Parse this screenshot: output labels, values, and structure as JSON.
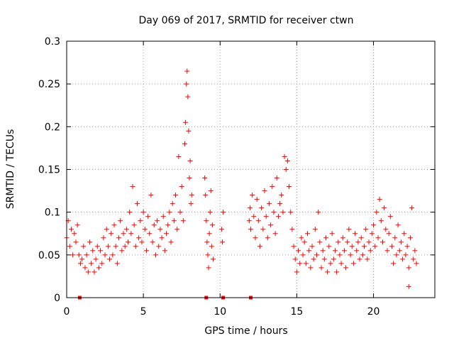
{
  "chart_data": {
    "type": "scatter",
    "title": "Day 069 of 2017, SRMTID for receiver ctwn",
    "xlabel": "GPS time / hours",
    "ylabel": "SRMTID / TECUs",
    "xlim": [
      0,
      24
    ],
    "ylim": [
      0,
      0.3
    ],
    "xticks": [
      0,
      5,
      10,
      15,
      20
    ],
    "xtick_labels": [
      "0",
      "5",
      "10",
      "15",
      "20"
    ],
    "yticks": [
      0,
      0.05,
      0.1,
      0.15,
      0.2,
      0.25,
      0.3
    ],
    "ytick_labels": [
      "0",
      "0.05",
      "0.1",
      "0.15",
      "0.2",
      "0.25",
      "0.3"
    ],
    "grid": true,
    "marker": "+",
    "series_color": "#ff0000",
    "series": [
      {
        "name": "SRMTID",
        "points": [
          [
            0.0,
            0.07
          ],
          [
            0.1,
            0.09
          ],
          [
            0.2,
            0.06
          ],
          [
            0.3,
            0.08
          ],
          [
            0.4,
            0.05
          ],
          [
            0.5,
            0.075
          ],
          [
            0.6,
            0.065
          ],
          [
            0.7,
            0.085
          ],
          [
            0.8,
            0.05
          ],
          [
            0.9,
            0.04
          ],
          [
            1.0,
            0.045
          ],
          [
            1.1,
            0.06
          ],
          [
            1.2,
            0.035
          ],
          [
            1.3,
            0.05
          ],
          [
            1.4,
            0.03
          ],
          [
            1.5,
            0.065
          ],
          [
            1.6,
            0.04
          ],
          [
            1.7,
            0.055
          ],
          [
            1.8,
            0.03
          ],
          [
            1.9,
            0.045
          ],
          [
            2.0,
            0.06
          ],
          [
            2.1,
            0.035
          ],
          [
            2.2,
            0.055
          ],
          [
            2.3,
            0.04
          ],
          [
            2.4,
            0.07
          ],
          [
            2.5,
            0.05
          ],
          [
            2.6,
            0.08
          ],
          [
            2.7,
            0.06
          ],
          [
            2.8,
            0.045
          ],
          [
            2.9,
            0.075
          ],
          [
            3.0,
            0.05
          ],
          [
            3.1,
            0.085
          ],
          [
            3.2,
            0.06
          ],
          [
            3.3,
            0.04
          ],
          [
            3.4,
            0.07
          ],
          [
            3.5,
            0.09
          ],
          [
            3.6,
            0.055
          ],
          [
            3.7,
            0.075
          ],
          [
            3.8,
            0.06
          ],
          [
            3.9,
            0.08
          ],
          [
            4.0,
            0.065
          ],
          [
            4.1,
            0.1
          ],
          [
            4.2,
            0.075
          ],
          [
            4.3,
            0.13
          ],
          [
            4.4,
            0.085
          ],
          [
            4.5,
            0.06
          ],
          [
            4.6,
            0.11
          ],
          [
            4.7,
            0.07
          ],
          [
            4.8,
            0.09
          ],
          [
            4.9,
            0.065
          ],
          [
            5.0,
            0.1
          ],
          [
            5.1,
            0.08
          ],
          [
            5.2,
            0.055
          ],
          [
            5.3,
            0.095
          ],
          [
            5.4,
            0.075
          ],
          [
            5.5,
            0.12
          ],
          [
            5.6,
            0.065
          ],
          [
            5.7,
            0.085
          ],
          [
            5.8,
            0.05
          ],
          [
            5.9,
            0.09
          ],
          [
            6.0,
            0.06
          ],
          [
            6.1,
            0.08
          ],
          [
            6.2,
            0.07
          ],
          [
            6.3,
            0.095
          ],
          [
            6.4,
            0.055
          ],
          [
            6.5,
            0.075
          ],
          [
            6.6,
            0.085
          ],
          [
            6.7,
            0.1
          ],
          [
            6.8,
            0.065
          ],
          [
            6.9,
            0.11
          ],
          [
            7.0,
            0.09
          ],
          [
            7.1,
            0.12
          ],
          [
            7.2,
            0.08
          ],
          [
            7.3,
            0.165
          ],
          [
            7.4,
            0.1
          ],
          [
            7.5,
            0.13
          ],
          [
            7.6,
            0.09
          ],
          [
            7.7,
            0.18
          ],
          [
            7.75,
            0.205
          ],
          [
            7.8,
            0.25
          ],
          [
            7.85,
            0.265
          ],
          [
            7.9,
            0.235
          ],
          [
            7.95,
            0.195
          ],
          [
            8.0,
            0.14
          ],
          [
            8.05,
            0.16
          ],
          [
            8.1,
            0.11
          ],
          [
            8.15,
            0.12
          ],
          [
            9.0,
            0.14
          ],
          [
            9.05,
            0.12
          ],
          [
            9.1,
            0.09
          ],
          [
            9.15,
            0.065
          ],
          [
            9.2,
            0.05
          ],
          [
            9.25,
            0.035
          ],
          [
            9.3,
            0.075
          ],
          [
            9.35,
            0.1
          ],
          [
            9.4,
            0.125
          ],
          [
            9.45,
            0.06
          ],
          [
            9.5,
            0.085
          ],
          [
            9.55,
            0.045
          ],
          [
            10.1,
            0.08
          ],
          [
            10.15,
            0.065
          ],
          [
            10.2,
            0.1
          ],
          [
            11.9,
            0.09
          ],
          [
            11.95,
            0.105
          ],
          [
            12.0,
            0.08
          ],
          [
            12.1,
            0.12
          ],
          [
            12.2,
            0.095
          ],
          [
            12.3,
            0.07
          ],
          [
            12.4,
            0.115
          ],
          [
            12.5,
            0.09
          ],
          [
            12.6,
            0.06
          ],
          [
            12.7,
            0.105
          ],
          [
            12.8,
            0.08
          ],
          [
            12.9,
            0.125
          ],
          [
            13.0,
            0.095
          ],
          [
            13.1,
            0.07
          ],
          [
            13.2,
            0.11
          ],
          [
            13.3,
            0.085
          ],
          [
            13.4,
            0.13
          ],
          [
            13.5,
            0.1
          ],
          [
            13.6,
            0.075
          ],
          [
            13.7,
            0.14
          ],
          [
            13.8,
            0.095
          ],
          [
            13.9,
            0.11
          ],
          [
            14.0,
            0.12
          ],
          [
            14.1,
            0.1
          ],
          [
            14.2,
            0.165
          ],
          [
            14.3,
            0.15
          ],
          [
            14.4,
            0.16
          ],
          [
            14.5,
            0.13
          ],
          [
            14.6,
            0.1
          ],
          [
            14.7,
            0.08
          ],
          [
            14.8,
            0.06
          ],
          [
            14.9,
            0.045
          ],
          [
            15.0,
            0.03
          ],
          [
            15.1,
            0.055
          ],
          [
            15.2,
            0.04
          ],
          [
            15.3,
            0.07
          ],
          [
            15.4,
            0.05
          ],
          [
            15.5,
            0.065
          ],
          [
            15.6,
            0.04
          ],
          [
            15.7,
            0.075
          ],
          [
            15.8,
            0.055
          ],
          [
            15.9,
            0.035
          ],
          [
            16.0,
            0.06
          ],
          [
            16.1,
            0.045
          ],
          [
            16.2,
            0.08
          ],
          [
            16.3,
            0.05
          ],
          [
            16.4,
            0.1
          ],
          [
            16.5,
            0.065
          ],
          [
            16.6,
            0.035
          ],
          [
            16.7,
            0.055
          ],
          [
            16.8,
            0.045
          ],
          [
            16.9,
            0.07
          ],
          [
            17.0,
            0.03
          ],
          [
            17.1,
            0.06
          ],
          [
            17.2,
            0.04
          ],
          [
            17.3,
            0.075
          ],
          [
            17.4,
            0.045
          ],
          [
            17.5,
            0.055
          ],
          [
            17.6,
            0.03
          ],
          [
            17.7,
            0.065
          ],
          [
            17.8,
            0.05
          ],
          [
            17.9,
            0.04
          ],
          [
            18.0,
            0.07
          ],
          [
            18.1,
            0.055
          ],
          [
            18.2,
            0.035
          ],
          [
            18.3,
            0.065
          ],
          [
            18.4,
            0.08
          ],
          [
            18.5,
            0.05
          ],
          [
            18.6,
            0.06
          ],
          [
            18.7,
            0.04
          ],
          [
            18.8,
            0.075
          ],
          [
            18.9,
            0.055
          ],
          [
            19.0,
            0.065
          ],
          [
            19.1,
            0.045
          ],
          [
            19.2,
            0.07
          ],
          [
            19.3,
            0.05
          ],
          [
            19.4,
            0.06
          ],
          [
            19.5,
            0.08
          ],
          [
            19.6,
            0.045
          ],
          [
            19.7,
            0.065
          ],
          [
            19.8,
            0.055
          ],
          [
            19.9,
            0.075
          ],
          [
            20.0,
            0.085
          ],
          [
            20.1,
            0.06
          ],
          [
            20.2,
            0.1
          ],
          [
            20.3,
            0.07
          ],
          [
            20.4,
            0.115
          ],
          [
            20.5,
            0.09
          ],
          [
            20.6,
            0.065
          ],
          [
            20.7,
            0.105
          ],
          [
            20.8,
            0.08
          ],
          [
            20.9,
            0.055
          ],
          [
            21.0,
            0.075
          ],
          [
            21.1,
            0.095
          ],
          [
            21.2,
            0.06
          ],
          [
            21.3,
            0.04
          ],
          [
            21.4,
            0.07
          ],
          [
            21.5,
            0.05
          ],
          [
            21.6,
            0.085
          ],
          [
            21.7,
            0.055
          ],
          [
            21.8,
            0.065
          ],
          [
            21.9,
            0.045
          ],
          [
            22.0,
            0.075
          ],
          [
            22.1,
            0.05
          ],
          [
            22.2,
            0.06
          ],
          [
            22.3,
            0.035
          ],
          [
            22.4,
            0.07
          ],
          [
            22.5,
            0.105
          ],
          [
            22.6,
            0.045
          ],
          [
            22.7,
            0.055
          ],
          [
            22.8,
            0.04
          ],
          [
            22.3,
            0.013
          ]
        ]
      }
    ],
    "zero_markers": [
      0.85,
      9.1,
      10.2,
      12.0
    ]
  }
}
